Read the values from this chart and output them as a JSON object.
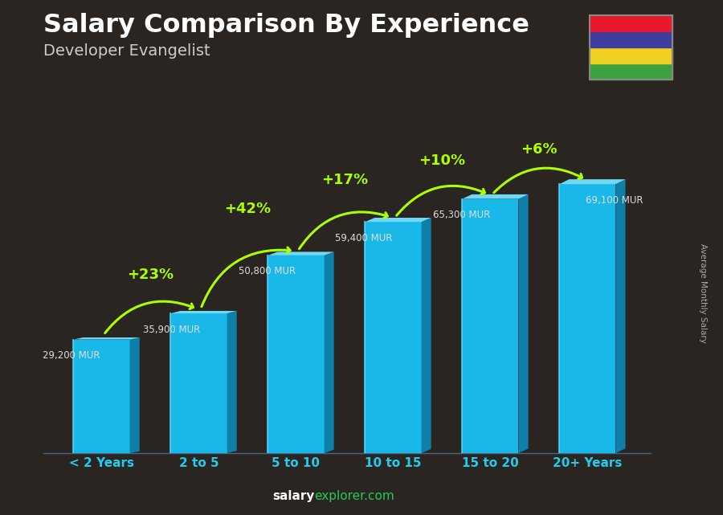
{
  "title": "Salary Comparison By Experience",
  "subtitle": "Developer Evangelist",
  "categories": [
    "< 2 Years",
    "2 to 5",
    "5 to 10",
    "10 to 15",
    "15 to 20",
    "20+ Years"
  ],
  "values": [
    29200,
    35900,
    50800,
    59400,
    65300,
    69100
  ],
  "labels": [
    "29,200 MUR",
    "35,900 MUR",
    "50,800 MUR",
    "59,400 MUR",
    "65,300 MUR",
    "69,100 MUR"
  ],
  "pct_labels": [
    "+23%",
    "+42%",
    "+17%",
    "+10%",
    "+6%"
  ],
  "bar_color_face": "#1ab8e8",
  "bar_color_right": "#0d7fa8",
  "bar_color_top": "#6fd8f5",
  "ylabel": "Average Monthly Salary",
  "footer_left": "salary",
  "footer_right": "explorer.com",
  "bg_color": "#2a2520",
  "text_color": "#ffffff",
  "pct_color": "#aaff00",
  "label_color": "#cccccc",
  "arrow_color": "#aaff00",
  "flag_colors": [
    "#e8192c",
    "#3d3d9e",
    "#f0d020",
    "#3da13d"
  ],
  "ylim": [
    0,
    82000
  ],
  "bar_width": 0.58
}
